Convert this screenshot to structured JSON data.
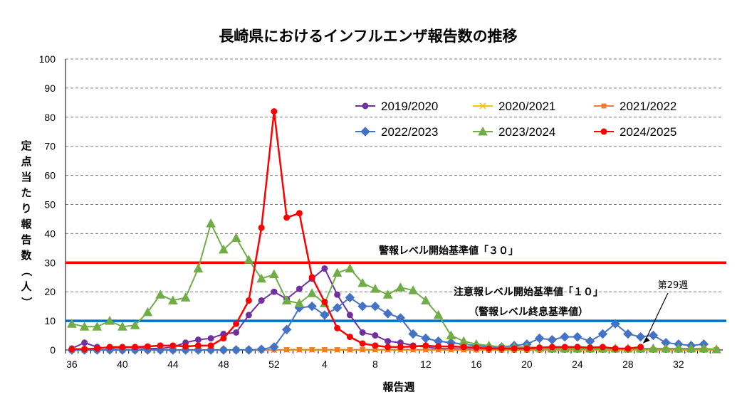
{
  "chart_data": {
    "type": "line",
    "title": "長崎県におけるインフルエンザ報告数の推移",
    "xlabel": "報告週",
    "ylabel": "定点当たり報告数（人）",
    "ylim": [
      0,
      100
    ],
    "yticks": [
      0,
      10,
      20,
      30,
      40,
      50,
      60,
      70,
      80,
      90,
      100
    ],
    "xtick_labels": [
      "36",
      "40",
      "44",
      "48",
      "52",
      "4",
      "8",
      "12",
      "16",
      "20",
      "24",
      "28",
      "32"
    ],
    "x_weeks": [
      "36",
      "37",
      "38",
      "39",
      "40",
      "41",
      "42",
      "43",
      "44",
      "45",
      "46",
      "47",
      "48",
      "49",
      "50",
      "51",
      "52",
      "1",
      "2",
      "3",
      "4",
      "5",
      "6",
      "7",
      "8",
      "9",
      "10",
      "11",
      "12",
      "13",
      "14",
      "15",
      "16",
      "17",
      "18",
      "19",
      "20",
      "21",
      "22",
      "23",
      "24",
      "25",
      "26",
      "27",
      "28",
      "29",
      "30",
      "31",
      "32",
      "33",
      "34",
      "35"
    ],
    "grid": true,
    "legend_position": "top-right",
    "series": [
      {
        "name": "2019/2020",
        "color": "#7030a0",
        "marker": "circle",
        "values": [
          0.5,
          2.5,
          1,
          0.5,
          0.8,
          0.8,
          0.5,
          0.5,
          1,
          2.5,
          3.5,
          4,
          5.5,
          6,
          12,
          17,
          20,
          17.5,
          21,
          24.5,
          28,
          19,
          12,
          6,
          5,
          3,
          2.5,
          1.5,
          1,
          0.5,
          0.4,
          0.3,
          0.2,
          0.1,
          0.1,
          0.1,
          0.1,
          0.1,
          0.1,
          0.1,
          0.1,
          0.1,
          0.1,
          0.1,
          0.1,
          0.1,
          0.1,
          0.1,
          0.1,
          0.1,
          0.1,
          0.1
        ]
      },
      {
        "name": "2020/2021",
        "color": "#ffc000",
        "marker": "x",
        "values": [
          0,
          0,
          0,
          0,
          0,
          0,
          0,
          0,
          0,
          0,
          0,
          0,
          0,
          0,
          0,
          0,
          0,
          0,
          0,
          0,
          0,
          0,
          0,
          0,
          0,
          0,
          0,
          0,
          0,
          0,
          0,
          0,
          0,
          0,
          0,
          0,
          0,
          0,
          0,
          0,
          0,
          0,
          0,
          0,
          0,
          0,
          0,
          0,
          0,
          0,
          0,
          0
        ]
      },
      {
        "name": "2021/2022",
        "color": "#ed7d31",
        "marker": "square",
        "values": [
          0,
          0,
          0,
          0,
          0,
          0,
          0,
          0,
          0,
          0,
          0,
          0,
          0,
          0,
          0,
          0,
          0,
          0.1,
          0.1,
          0.1,
          0.1,
          0.1,
          0.1,
          0.1,
          0.1,
          0.1,
          0.1,
          0.1,
          0.1,
          0.1,
          0.1,
          0.1,
          0.1,
          0.1,
          0.1,
          0.1,
          0.1,
          0.1,
          0.1,
          0.1,
          0.1,
          0.1,
          0.1,
          0.1,
          0.1,
          0.1,
          0.1,
          0.1,
          0.1,
          0.1,
          0.1,
          0.1
        ]
      },
      {
        "name": "2022/2023",
        "color": "#4472c4",
        "marker": "diamond",
        "values": [
          0,
          0,
          0,
          0,
          0,
          0,
          0,
          0,
          0,
          0,
          0,
          0,
          0,
          0,
          0,
          0.2,
          1,
          7,
          14.5,
          15,
          12,
          14.5,
          18,
          15,
          15,
          12.5,
          11,
          5.5,
          4,
          3,
          2.5,
          2,
          1.5,
          1,
          1,
          1.5,
          2,
          4,
          3.5,
          4.5,
          4.5,
          3,
          5.5,
          9,
          5.5,
          4.5,
          5,
          2.5,
          2,
          1.5,
          2,
          null
        ]
      },
      {
        "name": "2023/2024",
        "color": "#70ad47",
        "marker": "triangle",
        "values": [
          9,
          8,
          8,
          10,
          8,
          8.5,
          13,
          19,
          17,
          18,
          28,
          43.5,
          34.5,
          38.5,
          31,
          24.5,
          26,
          17,
          16,
          19.5,
          16,
          26.5,
          28,
          23,
          21,
          19,
          21.5,
          20.5,
          17,
          12,
          5,
          3,
          2,
          1.5,
          1,
          1,
          1,
          0.8,
          0.5,
          0.5,
          0.5,
          0.5,
          0.5,
          0.5,
          0.5,
          0.5,
          0.5,
          0.5,
          0.5,
          0.5,
          0.5,
          0.2
        ]
      },
      {
        "name": "2024/2025",
        "color": "#ff0000",
        "marker": "circle",
        "values": [
          0.3,
          0.3,
          0.5,
          1,
          1,
          1,
          1.2,
          1.5,
          1.5,
          1.2,
          1.5,
          1.5,
          4,
          9,
          17,
          42,
          82,
          45.5,
          47,
          25,
          16.5,
          7.5,
          4.5,
          2.2,
          1.5,
          1,
          1,
          1.2,
          1.5,
          1.2,
          1.2,
          1,
          0.8,
          0.5,
          0.5,
          0.5,
          0.5,
          0.8,
          1,
          1,
          1,
          0.8,
          1,
          0.5,
          0.5,
          1,
          null,
          null,
          null,
          null,
          null,
          null
        ]
      }
    ],
    "thresholds": [
      {
        "value": 30,
        "color": "#ff0000",
        "label": "警報レベル開始基準値「３０」"
      },
      {
        "value": 10,
        "color": "#0070c0",
        "label": "注意報レベル開始基準値「１０」",
        "sublabel": "（警報レベル終息基準値）"
      }
    ],
    "annotation": {
      "text": "第29週",
      "week_index": 45
    }
  }
}
